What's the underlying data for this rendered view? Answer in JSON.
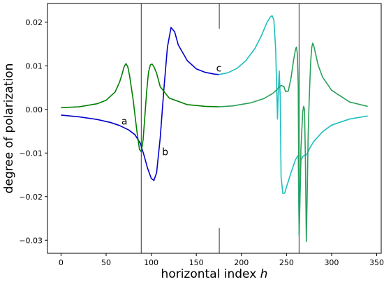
{
  "chart_data": {
    "type": "line",
    "xlabel_text": "horizontal index ",
    "xlabel_var": "h",
    "ylabel": "degree of polarization",
    "xlim": [
      -15,
      355
    ],
    "ylim": [
      -0.033,
      0.0243
    ],
    "x_ticks": [
      0,
      50,
      100,
      150,
      200,
      250,
      300,
      350
    ],
    "x_tick_labels": [
      "0",
      "50",
      "100",
      "150",
      "200",
      "250",
      "300",
      "350"
    ],
    "y_ticks": [
      0.02,
      0.01,
      0.0,
      -0.01,
      -0.02,
      -0.03
    ],
    "y_tick_labels": [
      "0.02",
      "0.01",
      "0.00",
      "−0.01",
      "−0.02",
      "−0.03"
    ],
    "vertical_lines": [
      {
        "x": 89,
        "y_range": [
          -0.033,
          0.0243
        ]
      },
      {
        "x": 175.5,
        "y_range": [
          0.0185,
          0.0243
        ]
      },
      {
        "x": 175.5,
        "y_range": [
          -0.033,
          -0.0272
        ]
      },
      {
        "x": 264,
        "y_range": [
          -0.033,
          0.0243
        ]
      }
    ],
    "annotations": [
      {
        "text": "a",
        "x": 67,
        "y": -0.0035
      },
      {
        "text": "b",
        "x": 112,
        "y": -0.0105
      },
      {
        "text": "c",
        "x": 172,
        "y": 0.0087
      }
    ],
    "series": [
      {
        "color": "#0000cc",
        "x": [
          0,
          20,
          40,
          55,
          65,
          75,
          82,
          88,
          92,
          96,
          100,
          103,
          106,
          110,
          114,
          118,
          122,
          126,
          130,
          140,
          150,
          160,
          170,
          175
        ],
        "values": [
          -0.0013,
          -0.0017,
          -0.0023,
          -0.003,
          -0.0037,
          -0.0047,
          -0.0058,
          -0.0078,
          -0.0105,
          -0.0135,
          -0.0158,
          -0.0163,
          -0.0145,
          -0.0065,
          0.0045,
          0.0143,
          0.0188,
          0.0178,
          0.0148,
          0.0112,
          0.0093,
          0.0085,
          0.0081,
          0.008
        ]
      },
      {
        "color": "#007f00",
        "x": [
          0,
          20,
          40,
          50,
          60,
          65,
          68,
          70,
          72,
          74,
          76,
          80,
          84,
          87,
          89,
          91,
          93,
          95,
          97,
          99,
          101,
          103,
          106,
          110,
          120,
          140,
          160,
          175
        ],
        "values": [
          0.0004,
          0.0006,
          0.0013,
          0.0021,
          0.004,
          0.0063,
          0.0083,
          0.0098,
          0.0105,
          0.0098,
          0.0078,
          0.0022,
          -0.0048,
          -0.0092,
          -0.0097,
          -0.007,
          -0.0015,
          0.0042,
          0.0085,
          0.0102,
          0.0104,
          0.0098,
          0.0083,
          0.0052,
          0.0026,
          0.0011,
          0.0007,
          0.0006
        ]
      },
      {
        "color": "#1fbfbf",
        "x": [
          175,
          185,
          195,
          205,
          215,
          222,
          228,
          232,
          234,
          236,
          238,
          240,
          241,
          242,
          243,
          244,
          246,
          248,
          250,
          255,
          260,
          263,
          264,
          265,
          266,
          268,
          270,
          271,
          272,
          273,
          274,
          276,
          280,
          290,
          300,
          320,
          340
        ],
        "values": [
          0.008,
          0.0084,
          0.0094,
          0.0112,
          0.014,
          0.0168,
          0.0198,
          0.0212,
          0.0215,
          0.0205,
          0.0138,
          -0.0022,
          0.0048,
          0.0088,
          0.003,
          -0.0155,
          -0.0193,
          -0.0192,
          -0.0178,
          -0.0145,
          -0.0115,
          -0.0105,
          -0.0285,
          -0.0195,
          -0.0118,
          -0.0108,
          -0.0105,
          -0.0106,
          -0.0104,
          -0.0101,
          -0.0097,
          -0.0088,
          -0.0074,
          -0.0051,
          -0.0036,
          -0.0022,
          -0.0015
        ]
      },
      {
        "color": "#2aa05a",
        "x": [
          175,
          190,
          210,
          225,
          235,
          240,
          244,
          247,
          249,
          252,
          255,
          258,
          260,
          261,
          262,
          263,
          264,
          265,
          266,
          268,
          269,
          270,
          271,
          272,
          273,
          274,
          275,
          276,
          277,
          278,
          279,
          280,
          282,
          285,
          290,
          300,
          320,
          340
        ],
        "values": [
          0.0006,
          0.0008,
          0.0015,
          0.0025,
          0.0037,
          0.0047,
          0.0055,
          0.0053,
          0.0041,
          0.0042,
          0.0072,
          0.0115,
          0.0138,
          0.0143,
          0.0128,
          0.0055,
          -0.029,
          -0.02,
          -0.009,
          -0.0005,
          0.0007,
          0.0,
          -0.012,
          -0.0303,
          -0.019,
          -0.006,
          0.0012,
          0.0068,
          0.0115,
          0.0142,
          0.0152,
          0.0148,
          0.013,
          0.0102,
          0.0074,
          0.0044,
          0.0017,
          0.0007
        ]
      }
    ]
  }
}
